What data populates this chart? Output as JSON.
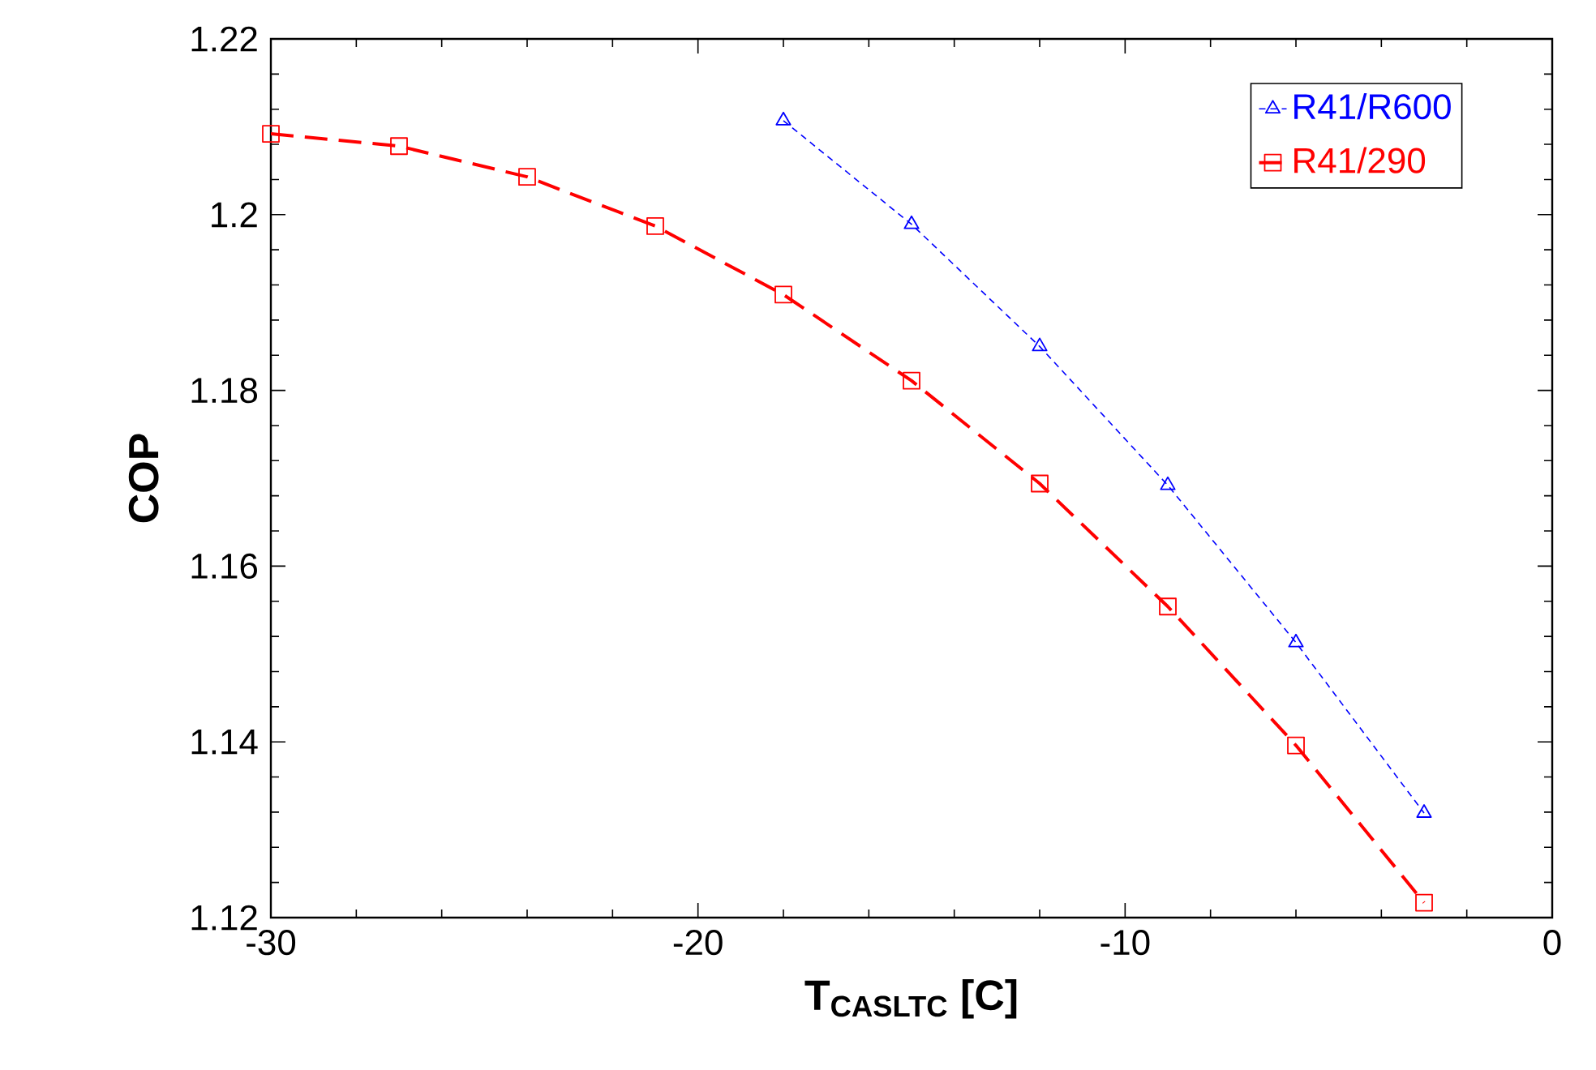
{
  "chart_data": {
    "type": "line",
    "xlabel": "T$_{CASLTC}$ [C]",
    "ylabel": "COP",
    "xlim": [
      -30,
      0
    ],
    "ylim": [
      1.12,
      1.22
    ],
    "xticks": [
      -30,
      -20,
      -10,
      0
    ],
    "yticks": [
      1.12,
      1.14,
      1.16,
      1.18,
      1.2,
      1.22
    ],
    "grid": false,
    "legend": "top right",
    "line_style": "dashed",
    "series": [
      {
        "name": "R41/R600",
        "color": "#0000ff",
        "marker": "triangle",
        "x": [
          -18,
          -15,
          -12,
          -9,
          -6,
          -3
        ],
        "values": [
          1.2107,
          1.1989,
          1.185,
          1.1692,
          1.1513,
          1.1319
        ]
      },
      {
        "name": "R41/290",
        "color": "#ff0000",
        "marker": "square",
        "x": [
          -30,
          -27,
          -24,
          -21,
          -18,
          -15,
          -12,
          -9,
          -6,
          -3
        ],
        "values": [
          1.2092,
          1.2078,
          1.2043,
          1.1987,
          1.1909,
          1.1811,
          1.1694,
          1.1554,
          1.1396,
          1.1217
        ]
      }
    ]
  }
}
